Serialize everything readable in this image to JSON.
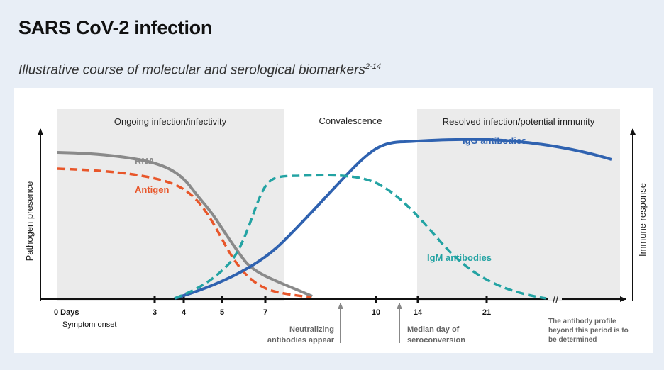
{
  "title": "SARS CoV-2 infection",
  "subtitle": "Illustrative course of molecular and serological biomarkers",
  "subtitle_ref": "2-14",
  "phases": [
    "Ongoing infection/infectivity",
    "Convalescence",
    "Resolved infection/potential immunity"
  ],
  "axes": {
    "left_label": "Pathogen presence",
    "right_label": "Immune response",
    "break_mark": "//"
  },
  "ticks": [
    {
      "label": "0 Days",
      "sub": "Symptom onset"
    },
    {
      "label": "3"
    },
    {
      "label": "4"
    },
    {
      "label": "5"
    },
    {
      "label": "7"
    },
    {
      "label": "10"
    },
    {
      "label": "14"
    },
    {
      "label": "21"
    }
  ],
  "curves": {
    "rna": {
      "label": "RNA",
      "color": "#8a8a8a"
    },
    "antigen": {
      "label": "Antigen",
      "color": "#e8562a"
    },
    "igm": {
      "label": "IgM antibodies",
      "color": "#23a3a3"
    },
    "igg": {
      "label": "IgG antibodies",
      "color": "#2f62b0"
    }
  },
  "annotations": {
    "neutralizing": [
      "Neutralizing",
      "antibodies appear"
    ],
    "median": [
      "Median day of",
      "seroconversion"
    ],
    "profile": [
      "The antibody profile",
      "beyond this period is to",
      "be determined"
    ]
  },
  "colors": {
    "shade": "#ebebeb",
    "axis": "#111111",
    "arrow": "#888888",
    "background": "#e8eef6"
  }
}
